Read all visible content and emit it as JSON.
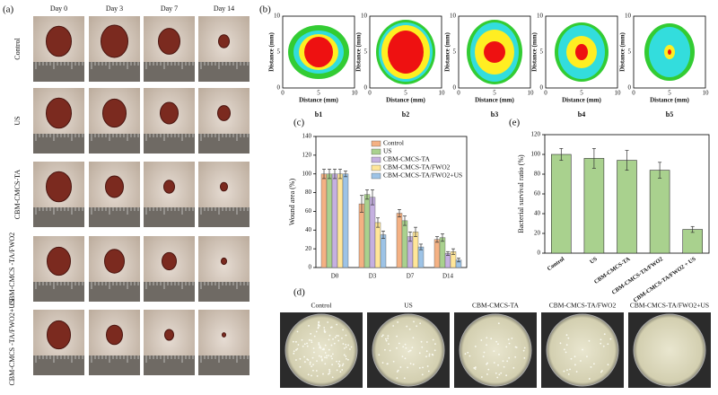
{
  "panel_labels": [
    "(a)",
    "(b)",
    "(c)",
    "(d)",
    "(e)"
  ],
  "photo_grid": {
    "columns": [
      "Day 0",
      "Day 3",
      "Day 7",
      "Day 14"
    ],
    "rows": [
      "Control",
      "US",
      "CBM-CMCS-TA",
      "CBM-CMCS -TA/FWO2",
      "CBM-CMCS -TA/FWO2+US"
    ]
  },
  "maps": {
    "xlabel": "Distance (mm)",
    "ylabel": "Distance (mm)",
    "ticks": [
      0,
      5,
      10
    ],
    "labels": [
      "b1",
      "b2",
      "b3",
      "b4",
      "b5"
    ]
  },
  "chart_data": [
    {
      "type": "bar",
      "ylabel": "Wound area (%)",
      "categories": [
        "D0",
        "D3",
        "D7",
        "D14"
      ],
      "series": [
        {
          "name": "Control",
          "color": "#f4b183",
          "values": [
            100,
            68,
            58,
            30
          ],
          "errors": [
            5,
            9,
            4,
            3
          ]
        },
        {
          "name": "US",
          "color": "#a9d18e",
          "values": [
            100,
            78,
            50,
            32
          ],
          "errors": [
            5,
            5,
            5,
            4
          ]
        },
        {
          "name": "CBM-CMCS-TA",
          "color": "#c5b0e0",
          "values": [
            100,
            75,
            33,
            15
          ],
          "errors": [
            5,
            8,
            5,
            2
          ]
        },
        {
          "name": "CBM-CMCS-TA/FWO2",
          "color": "#ffe699",
          "values": [
            100,
            48,
            38,
            17
          ],
          "errors": [
            5,
            5,
            5,
            3
          ]
        },
        {
          "name": "CBM-CMCS-TA/FWO2+US",
          "color": "#9dc3e6",
          "values": [
            100,
            35,
            22,
            8
          ],
          "errors": [
            3,
            4,
            3,
            2
          ]
        }
      ],
      "ylim": [
        0,
        140
      ],
      "yticks": [
        0,
        20,
        40,
        60,
        80,
        100,
        120,
        140
      ],
      "legend": "upper right"
    },
    {
      "type": "bar",
      "ylabel": "Bacterial survival ratio (%)",
      "categories": [
        "Control",
        "US",
        "CBM-CMCS-TA",
        "CBM-CMCS-TA/FWO2",
        "CBM-CMCS-TA/FWO2 + US"
      ],
      "values": [
        100,
        96,
        94,
        84,
        24
      ],
      "errors": [
        6,
        10,
        10,
        8,
        3
      ],
      "color": "#a9d18e",
      "ylim": [
        0,
        120
      ],
      "yticks": [
        0,
        20,
        40,
        60,
        80,
        100,
        120
      ]
    }
  ],
  "plates": [
    "Control",
    "US",
    "CBM-CMCS-TA",
    "CBM-CMCS-TA/FWO2",
    "CBM-CMCS-TA/FWO2+US"
  ]
}
